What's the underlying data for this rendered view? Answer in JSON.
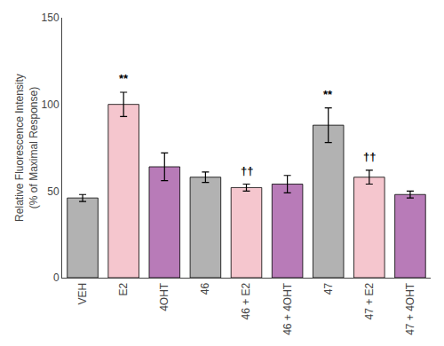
{
  "chart_data": {
    "type": "bar",
    "categories": [
      "VEH",
      "E2",
      "4OHT",
      "46",
      "46 + E2",
      "46 + 4OHT",
      "47",
      "47 + E2",
      "47 + 4OHT"
    ],
    "values": [
      46,
      100,
      64,
      58,
      52,
      54,
      88,
      58,
      48
    ],
    "errors": [
      2,
      7,
      8,
      3,
      2,
      5,
      10,
      4,
      2
    ],
    "colors": [
      "#b2b2b2",
      "#f5c6ce",
      "#b87bb8",
      "#b2b2b2",
      "#f5c6ce",
      "#b87bb8",
      "#b2b2b2",
      "#f5c6ce",
      "#b87bb8"
    ],
    "ylabel": "Relative Fluorescence Intensity\n(% of Maximal Response)",
    "ylim": [
      0,
      150
    ],
    "yticks": [
      0,
      50,
      100,
      150
    ],
    "annotations": [
      {
        "category": "E2",
        "text": "**"
      },
      {
        "category": "47",
        "text": "**"
      },
      {
        "category": "46 + E2",
        "text": "††"
      },
      {
        "category": "47 + E2",
        "text": "††"
      }
    ],
    "grid": false
  }
}
